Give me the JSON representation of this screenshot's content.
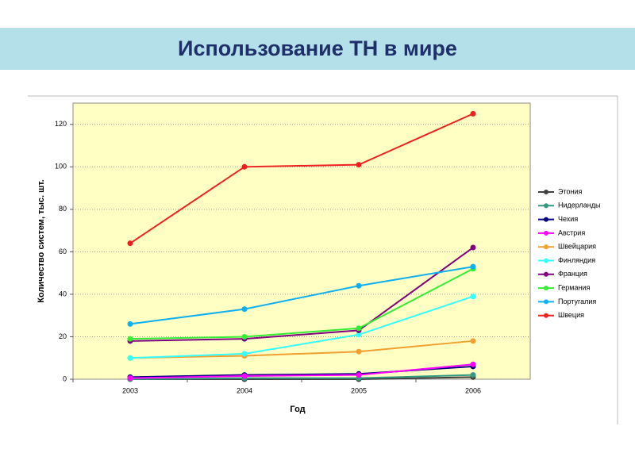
{
  "chart_data": {
    "type": "line",
    "slide_title": "Использование ТН в мире",
    "xlabel": "Год",
    "ylabel": "Количество систем, тыс. шт.",
    "categories": [
      "2003",
      "2004",
      "2005",
      "2006"
    ],
    "ylim": [
      0,
      130
    ],
    "yticks": [
      0,
      20,
      40,
      60,
      80,
      100,
      120
    ],
    "grid": true,
    "legend": "right",
    "series": [
      {
        "name": "Этония",
        "color": "#404040",
        "values": [
          0,
          0,
          0,
          1
        ]
      },
      {
        "name": "Нидерланды",
        "color": "#339980",
        "values": [
          0,
          0.5,
          0.5,
          2
        ]
      },
      {
        "name": "Чехия",
        "color": "#000080",
        "values": [
          1,
          2,
          2.5,
          6
        ]
      },
      {
        "name": "Австрия",
        "color": "#ff00ff",
        "values": [
          0.5,
          1.5,
          2,
          7
        ]
      },
      {
        "name": "Швейцария",
        "color": "#f0a030",
        "values": [
          10,
          11,
          13,
          18
        ]
      },
      {
        "name": "Финляндия",
        "color": "#33ffff",
        "values": [
          10,
          12,
          21,
          39
        ]
      },
      {
        "name": "Франция",
        "color": "#800080",
        "values": [
          18,
          19,
          23,
          62
        ]
      },
      {
        "name": "Германия",
        "color": "#33ee33",
        "values": [
          19,
          20,
          24,
          52
        ]
      },
      {
        "name": "Португалия",
        "color": "#10b0f0",
        "values": [
          26,
          33,
          44,
          53
        ]
      },
      {
        "name": "Швеция",
        "color": "#ee2020",
        "values": [
          64,
          100,
          101,
          125
        ]
      }
    ]
  }
}
